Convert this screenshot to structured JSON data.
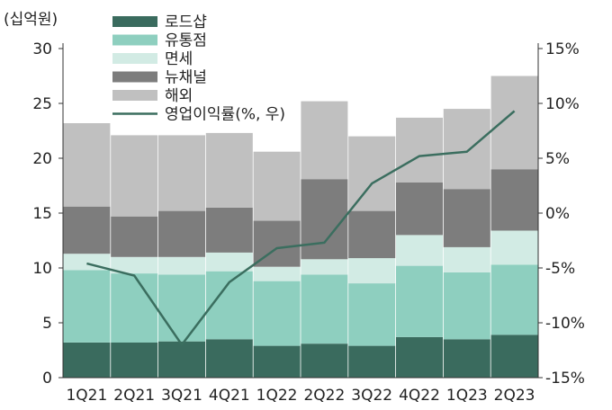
{
  "chart_data": {
    "type": "bar",
    "stacked": true,
    "y_unit_label": "(십억원)",
    "categories": [
      "1Q21",
      "2Q21",
      "3Q21",
      "4Q21",
      "1Q22",
      "2Q22",
      "3Q22",
      "4Q22",
      "1Q23",
      "2Q23"
    ],
    "series": [
      {
        "name": "로드샵",
        "color": "#3a6b5e",
        "values": [
          3.2,
          3.2,
          3.3,
          3.5,
          2.9,
          3.1,
          2.9,
          3.7,
          3.5,
          3.9
        ]
      },
      {
        "name": "유통점",
        "color": "#8ecfbf",
        "values": [
          6.6,
          6.3,
          6.1,
          6.2,
          5.9,
          6.3,
          5.7,
          6.5,
          6.1,
          6.4
        ]
      },
      {
        "name": "면세",
        "color": "#d2ebe4",
        "values": [
          1.5,
          1.5,
          1.6,
          1.7,
          1.3,
          1.4,
          2.3,
          2.8,
          2.3,
          3.1
        ]
      },
      {
        "name": "뉴채널",
        "color": "#7d7d7d",
        "values": [
          4.3,
          3.7,
          4.2,
          4.1,
          4.2,
          7.3,
          4.3,
          4.8,
          5.3,
          5.6
        ]
      },
      {
        "name": "해외",
        "color": "#c0c0c0",
        "values": [
          7.6,
          7.4,
          6.9,
          6.8,
          6.3,
          7.1,
          6.8,
          5.9,
          7.3,
          8.5
        ]
      }
    ],
    "line_series": {
      "name": "영업이익률(%, 우)",
      "color": "#3b6e5f",
      "values": [
        -4.6,
        -5.7,
        -12.0,
        -6.3,
        -3.2,
        -2.7,
        2.7,
        5.2,
        5.6,
        9.3
      ]
    },
    "y_left": {
      "min": 0,
      "max": 30,
      "ticks": [
        "0",
        "5",
        "10",
        "15",
        "20",
        "25",
        "30"
      ]
    },
    "y_right": {
      "min": -15,
      "max": 15,
      "ticks": [
        "-15%",
        "-10%",
        "-5%",
        "0%",
        "5%",
        "10%",
        "15%"
      ]
    },
    "legend_position": "top-left"
  }
}
